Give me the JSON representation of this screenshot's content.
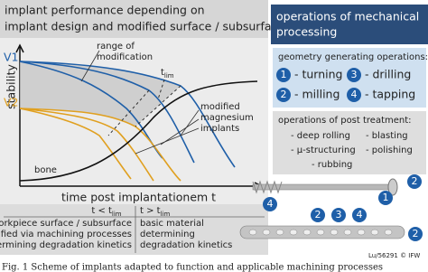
{
  "left_panel": {
    "title_lines": [
      "implant performance depending on",
      "implant design and modified surface / subsurface"
    ],
    "y_axis_label": "stability",
    "v1_label": "V1",
    "v2_label": "V2",
    "range_label": [
      "range of",
      "modification"
    ],
    "t_lim": {
      "main": "t",
      "sub": "lim"
    },
    "implants_label": [
      "modified",
      "magnesium",
      "implants"
    ],
    "bone_label": "bone",
    "x_axis_label": "time post implantationem t",
    "table": {
      "headers": [
        {
          "main": "t < t",
          "sub": "lim"
        },
        {
          "main": "t > t",
          "sub": "lim"
        }
      ],
      "rows": [
        [
          "workpiece surface / subsurface",
          "basic material"
        ],
        [
          "modified via machining processes",
          "determining"
        ],
        [
          "determining degradation kinetics",
          "degradation kinetics"
        ]
      ]
    }
  },
  "right_panel": {
    "title_lines": [
      "operations of mechanical",
      "processing"
    ],
    "geometry_heading": "geometry generating operations:",
    "geometry_ops": [
      {
        "number": "1",
        "label": "- turning"
      },
      {
        "number": "3",
        "label": "- drilling"
      },
      {
        "number": "2",
        "label": "- milling"
      },
      {
        "number": "4",
        "label": "- tapping"
      }
    ],
    "post_heading": "operations of post treatment:",
    "post_ops": [
      "- deep rolling",
      "- blasting",
      "- µ-structuring",
      "- polishing",
      "- rubbing"
    ],
    "screw_markers": [
      "4",
      "1",
      "2"
    ],
    "plate_markers": [
      "2",
      "3",
      "4",
      "2"
    ],
    "credit": "Lu/56291 © IFW"
  },
  "caption": "Fig. 1 Scheme of implants adapted to function and applicable machining processes"
}
